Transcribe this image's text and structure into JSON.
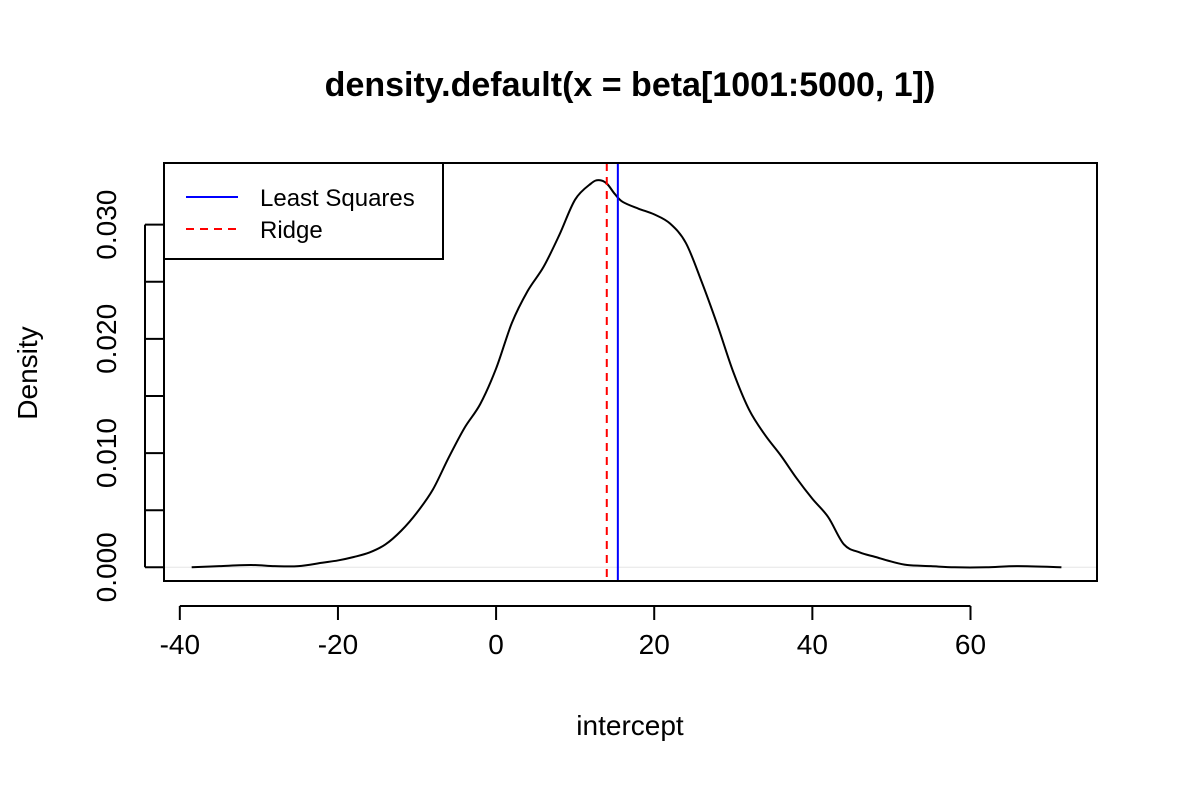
{
  "chart_data": {
    "type": "line",
    "title": "density.default(x = beta[1001:5000, 1])",
    "xlabel": "intercept",
    "ylabel": "Density",
    "xlim": [
      -42,
      76
    ],
    "ylim": [
      -0.0012,
      0.0354
    ],
    "x_ticks": [
      -40,
      -20,
      0,
      20,
      40,
      60
    ],
    "x_tick_labels": [
      "-40",
      "-20",
      "0",
      "20",
      "40",
      "60"
    ],
    "y_ticks": [
      0.0,
      0.005,
      0.01,
      0.015,
      0.02,
      0.025,
      0.03
    ],
    "y_tick_labels": [
      "0.000",
      "",
      "0.010",
      "",
      "0.020",
      "",
      "0.030"
    ],
    "grid": false,
    "legend_position": "top-left",
    "series": [
      {
        "color": "#000000",
        "x": [
          -38.5,
          -35,
          -31,
          -28,
          -25,
          -22,
          -20,
          -18,
          -16,
          -14,
          -12,
          -10,
          -8,
          -6,
          -4,
          -2,
          0,
          2,
          4,
          6,
          8,
          10,
          12,
          13,
          14,
          15,
          16,
          18,
          20,
          22,
          24,
          26,
          28,
          30,
          32,
          34,
          36,
          38,
          40,
          42,
          44,
          46,
          48,
          50,
          52,
          55,
          58,
          62,
          66,
          71.5
        ],
        "y": [
          0.0,
          0.0001,
          0.0002,
          0.0001,
          0.0001,
          0.0004,
          0.0006,
          0.0009,
          0.0013,
          0.002,
          0.0032,
          0.0048,
          0.0068,
          0.0096,
          0.0122,
          0.0143,
          0.0174,
          0.0214,
          0.0242,
          0.0263,
          0.0291,
          0.0322,
          0.0336,
          0.0339,
          0.0336,
          0.0327,
          0.032,
          0.0314,
          0.0309,
          0.0301,
          0.0284,
          0.025,
          0.0212,
          0.0171,
          0.0138,
          0.0116,
          0.0098,
          0.0078,
          0.006,
          0.0044,
          0.002,
          0.0013,
          0.0009,
          0.0005,
          0.0002,
          0.0001,
          0.0,
          0.0,
          0.0001,
          0.0
        ]
      }
    ],
    "vlines": [
      {
        "name": "Least Squares",
        "x": 15.4,
        "color": "#0000ff",
        "style": "solid"
      },
      {
        "name": "Ridge",
        "x": 14.0,
        "color": "#ff0000",
        "style": "dashed"
      }
    ],
    "baseline": {
      "y": 0.0,
      "color": "#e6e6e6"
    }
  }
}
